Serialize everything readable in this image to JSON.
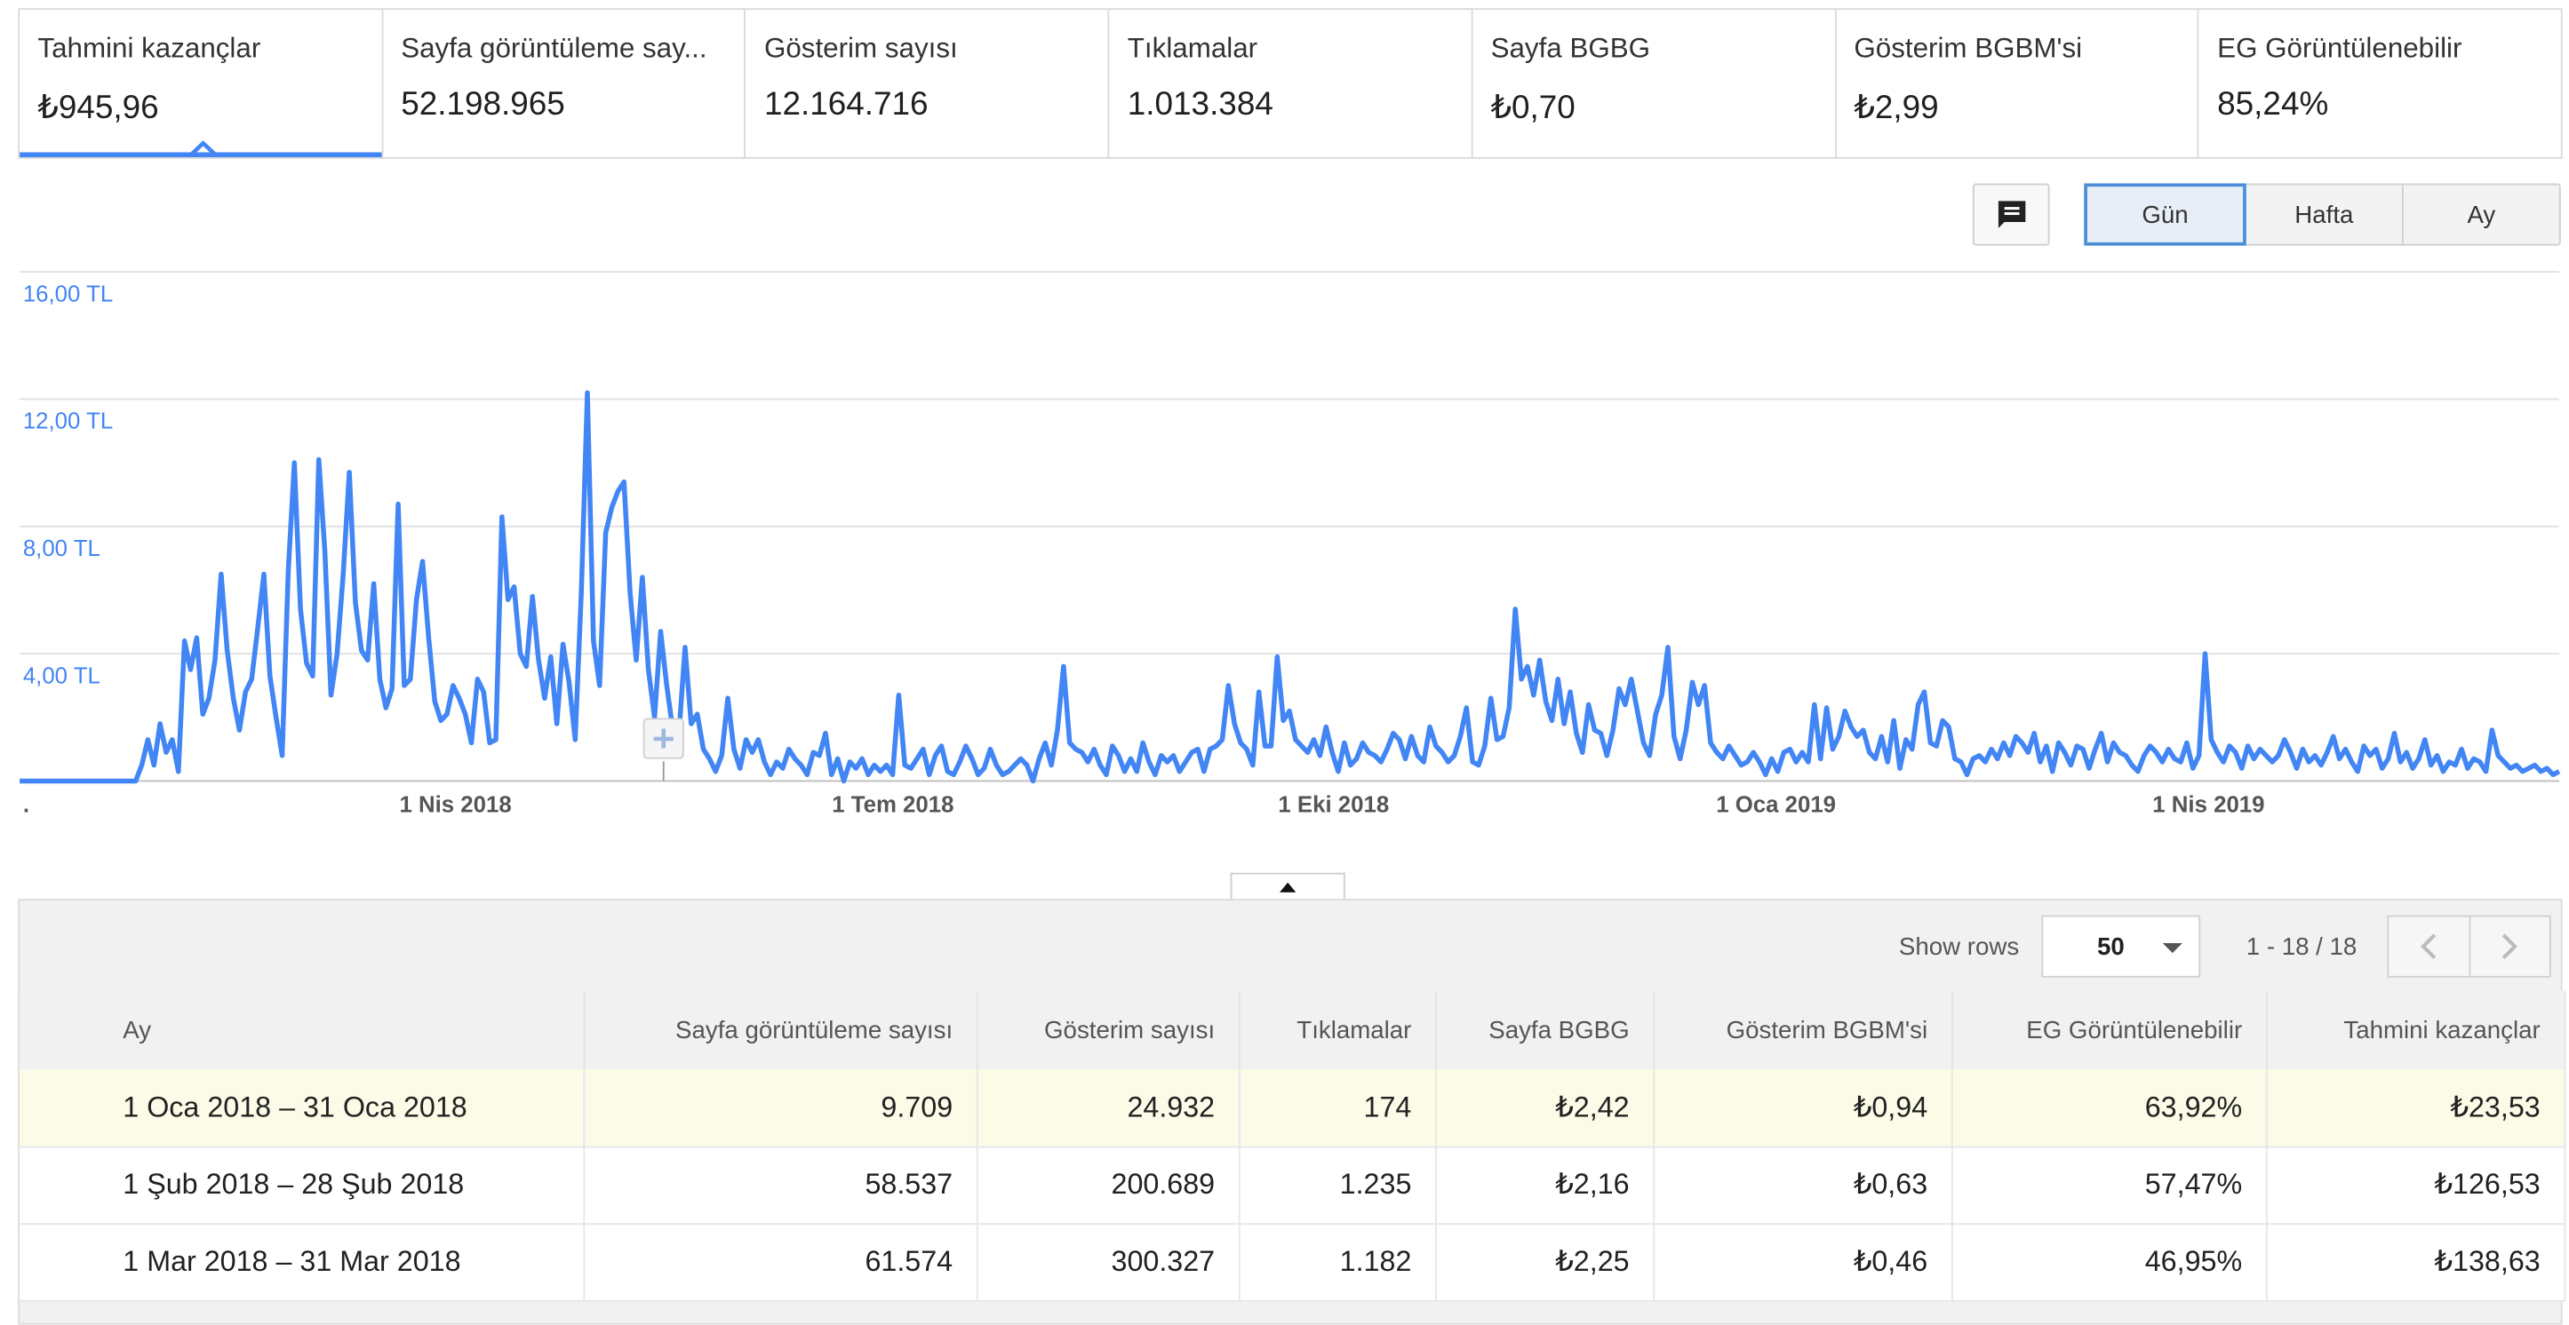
{
  "metrics": [
    {
      "label": "Tahmini kazançlar",
      "value": "₺945,96"
    },
    {
      "label": "Sayfa görüntüleme say...",
      "value": "52.198.965"
    },
    {
      "label": "Gösterim sayısı",
      "value": "12.164.716"
    },
    {
      "label": "Tıklamalar",
      "value": "1.013.384"
    },
    {
      "label": "Sayfa BGBG",
      "value": "₺0,70"
    },
    {
      "label": "Gösterim BGBM'si",
      "value": "₺2,99"
    },
    {
      "label": "EG Görüntülenebilir",
      "value": "85,24%"
    }
  ],
  "toolbar": {
    "annotation_icon": "comment-icon",
    "periods": [
      "Gün",
      "Hafta",
      "Ay"
    ],
    "active_period": "Gün"
  },
  "colors": {
    "accent": "#4285f4",
    "highlight_row": "#fbfbe8",
    "axis_label": "#4285f4"
  },
  "chart_data": {
    "type": "line",
    "series": [
      {
        "values": [
          0.0,
          0.0,
          0.0,
          0.0,
          0.0,
          0.0,
          0.0,
          0.0,
          0.0,
          0.0,
          0.0,
          0.0,
          0.0,
          0.0,
          0.0,
          0.0,
          0.0,
          0.0,
          0.0,
          0.0,
          0.5,
          1.3,
          0.5,
          1.8,
          0.9,
          1.3,
          0.3,
          4.4,
          3.5,
          4.5,
          2.1,
          2.6,
          3.8,
          6.5,
          4.1,
          2.6,
          1.6,
          2.8,
          3.2,
          4.8,
          6.5,
          3.3,
          2.0,
          0.8,
          6.6,
          10.0,
          5.4,
          3.7,
          3.3,
          10.1,
          7.2,
          2.7,
          4.0,
          6.5,
          9.7,
          5.6,
          4.1,
          3.8,
          6.2,
          3.2,
          2.3,
          2.9,
          8.7,
          3.0,
          3.2,
          5.7,
          6.9,
          4.5,
          2.5,
          1.9,
          2.1,
          3.0,
          2.6,
          2.1,
          1.2,
          3.2,
          2.8,
          1.2,
          1.3,
          8.3,
          5.7,
          6.1,
          4.0,
          3.6,
          5.8,
          3.8,
          2.6,
          3.9,
          1.8,
          4.3,
          3.1,
          1.3,
          5.9,
          12.2,
          4.4,
          3.0,
          7.8,
          8.6,
          9.1,
          9.4,
          5.9,
          3.8,
          6.4,
          3.5,
          2.0,
          4.7,
          3.0,
          1.6,
          1.5,
          4.2,
          1.8,
          2.1,
          1.0,
          0.7,
          0.3,
          0.8,
          2.6,
          1.0,
          0.4,
          1.3,
          0.9,
          1.3,
          0.6,
          0.2,
          0.6,
          0.4,
          1.0,
          0.7,
          0.5,
          0.2,
          0.9,
          0.8,
          1.5,
          0.2,
          0.7,
          0.0,
          0.6,
          0.4,
          0.7,
          0.2,
          0.5,
          0.3,
          0.5,
          0.2,
          2.7,
          0.5,
          0.4,
          0.7,
          1.0,
          0.2,
          0.8,
          1.1,
          0.3,
          0.2,
          0.6,
          1.1,
          0.7,
          0.2,
          0.4,
          1.0,
          0.5,
          0.2,
          0.3,
          0.5,
          0.7,
          0.5,
          0.0,
          0.7,
          1.2,
          0.5,
          1.6,
          3.6,
          1.2,
          1.0,
          0.9,
          0.6,
          1.0,
          0.5,
          0.2,
          1.1,
          0.8,
          0.3,
          0.7,
          0.3,
          1.2,
          0.6,
          0.2,
          0.8,
          0.6,
          0.8,
          0.3,
          0.6,
          0.9,
          1.0,
          0.3,
          1.0,
          1.1,
          1.3,
          3.0,
          1.8,
          1.2,
          1.0,
          0.5,
          2.8,
          1.1,
          1.1,
          3.9,
          1.9,
          2.2,
          1.3,
          1.1,
          0.9,
          1.3,
          0.8,
          1.7,
          0.9,
          0.3,
          1.2,
          0.5,
          0.7,
          1.2,
          0.9,
          0.8,
          0.6,
          1.0,
          1.5,
          1.3,
          0.7,
          1.4,
          0.8,
          0.6,
          1.7,
          1.1,
          0.9,
          0.6,
          0.8,
          1.4,
          2.3,
          0.6,
          0.5,
          1.1,
          2.6,
          1.3,
          1.4,
          2.3,
          5.4,
          3.2,
          3.6,
          2.7,
          3.8,
          2.5,
          1.9,
          3.2,
          1.8,
          2.8,
          1.5,
          0.9,
          2.4,
          1.6,
          1.5,
          0.8,
          1.6,
          2.9,
          2.4,
          3.2,
          2.2,
          1.2,
          0.8,
          2.1,
          2.7,
          4.2,
          1.4,
          0.7,
          1.6,
          3.1,
          2.4,
          3.0,
          1.2,
          0.9,
          0.7,
          1.1,
          0.8,
          0.5,
          0.6,
          0.9,
          0.6,
          0.2,
          0.7,
          0.3,
          0.9,
          1.0,
          0.6,
          0.9,
          0.6,
          2.4,
          0.7,
          2.3,
          1.0,
          1.4,
          2.2,
          1.7,
          1.4,
          1.6,
          0.9,
          0.7,
          1.4,
          0.6,
          1.9,
          0.4,
          1.3,
          1.0,
          2.4,
          2.8,
          1.2,
          1.1,
          1.9,
          1.7,
          0.7,
          0.6,
          0.2,
          0.7,
          0.8,
          0.6,
          1.0,
          0.7,
          1.2,
          0.8,
          1.4,
          1.2,
          0.9,
          1.5,
          0.6,
          1.1,
          0.3,
          1.2,
          0.9,
          0.5,
          1.1,
          1.0,
          0.4,
          1.0,
          1.5,
          0.6,
          1.2,
          0.9,
          0.8,
          0.5,
          0.3,
          0.8,
          1.1,
          0.9,
          0.6,
          1.0,
          0.7,
          0.6,
          1.2,
          0.4,
          0.8,
          4.0,
          1.3,
          0.9,
          0.6,
          1.1,
          0.9,
          0.4,
          1.1,
          0.7,
          1.0,
          0.8,
          0.6,
          0.8,
          1.3,
          0.9,
          0.4,
          1.0,
          0.6,
          0.8,
          0.5,
          0.9,
          1.4,
          0.7,
          1.0,
          0.6,
          0.3,
          1.1,
          0.8,
          1.0,
          0.4,
          0.7,
          1.5,
          0.6,
          0.9,
          0.4,
          0.7,
          1.3,
          0.5,
          0.8,
          0.3,
          0.6,
          0.5,
          1.0,
          0.4,
          0.7,
          0.6,
          0.3,
          1.6,
          0.8,
          0.6,
          0.4,
          0.5,
          0.3,
          0.4,
          0.5,
          0.3,
          0.4,
          0.2,
          0.3
        ]
      }
    ],
    "y_ticks": [
      "16,00 TL",
      "12,00 TL",
      "8,00 TL",
      "4,00 TL"
    ],
    "ylim": [
      0,
      16
    ],
    "x_ticks": [
      ".",
      "1 Nis 2018",
      "1 Tem 2018",
      "1 Eki 2018",
      "1 Oca 2019",
      "1 Nis 2019"
    ],
    "grid": true
  },
  "table": {
    "show_rows_label": "Show rows",
    "rows_per_page": "50",
    "page_range": "1 - 18 / 18",
    "headers": [
      "Ay",
      "Sayfa görüntüleme sayısı",
      "Gösterim sayısı",
      "Tıklamalar",
      "Sayfa BGBG",
      "Gösterim BGBM'si",
      "EG Görüntülenebilir",
      "Tahmini kazançlar"
    ],
    "rows": [
      [
        "1 Oca 2018 – 31 Oca 2018",
        "9.709",
        "24.932",
        "174",
        "₺2,42",
        "₺0,94",
        "63,92%",
        "₺23,53"
      ],
      [
        "1 Şub 2018 – 28 Şub 2018",
        "58.537",
        "200.689",
        "1.235",
        "₺2,16",
        "₺0,63",
        "57,47%",
        "₺126,53"
      ],
      [
        "1 Mar 2018 – 31 Mar 2018",
        "61.574",
        "300.327",
        "1.182",
        "₺2,25",
        "₺0,46",
        "46,95%",
        "₺138,63"
      ]
    ]
  }
}
